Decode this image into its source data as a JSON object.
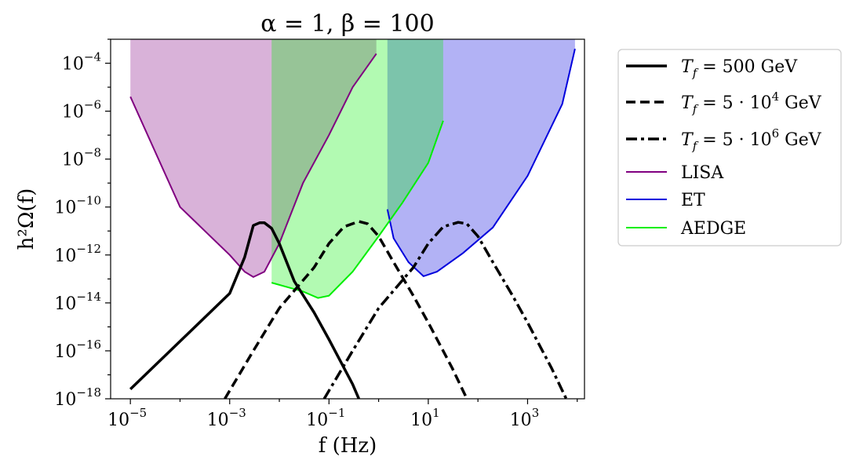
{
  "chart_data": {
    "type": "line",
    "title": "α = 1, β = 100",
    "xlabel": "f (Hz)",
    "ylabel": "h²Ω(f)",
    "xscale": "log",
    "yscale": "log",
    "xlim": [
      4e-06,
      14000.0
    ],
    "ylim": [
      1e-18,
      0.001
    ],
    "x_ticks": [
      {
        "value": 1e-05,
        "base": "10",
        "exp": "−5"
      },
      {
        "value": 0.001,
        "base": "10",
        "exp": "−3"
      },
      {
        "value": 0.1,
        "base": "10",
        "exp": "−1"
      },
      {
        "value": 10.0,
        "base": "10",
        "exp": "1"
      },
      {
        "value": 1000.0,
        "base": "10",
        "exp": "3"
      }
    ],
    "y_ticks": [
      {
        "value": 1e-18,
        "base": "10",
        "exp": "−18"
      },
      {
        "value": 1e-16,
        "base": "10",
        "exp": "−16"
      },
      {
        "value": 1e-14,
        "base": "10",
        "exp": "−14"
      },
      {
        "value": 1e-12,
        "base": "10",
        "exp": "−12"
      },
      {
        "value": 1e-10,
        "base": "10",
        "exp": "−10"
      },
      {
        "value": 1e-08,
        "base": "10",
        "exp": "−8"
      },
      {
        "value": 1e-06,
        "base": "10",
        "exp": "−6"
      },
      {
        "value": 0.0001,
        "base": "10",
        "exp": "−4"
      }
    ],
    "legend_position": "outside right",
    "series": [
      {
        "name": "T_f = 500 GeV",
        "color": "#000000",
        "dash": "solid",
        "points": [
          [
            1e-05,
            2.5e-18
          ],
          [
            0.0001,
            2.5e-16
          ],
          [
            0.001,
            2.5e-14
          ],
          [
            0.002,
            8e-13
          ],
          [
            0.003,
            1.7e-11
          ],
          [
            0.004,
            2.2e-11
          ],
          [
            0.005,
            2.2e-11
          ],
          [
            0.007,
            1.3e-11
          ],
          [
            0.01,
            3e-12
          ],
          [
            0.02,
            8e-14
          ],
          [
            0.05,
            4e-15
          ],
          [
            0.1,
            3e-16
          ],
          [
            0.3,
            4e-18
          ],
          [
            0.4,
            1e-18
          ]
        ]
      },
      {
        "name": "T_f = 5·10^4 GeV",
        "color": "#000000",
        "dash": "dashed",
        "points": [
          [
            0.0008,
            1e-18
          ],
          [
            0.003,
            1e-16
          ],
          [
            0.01,
            6e-15
          ],
          [
            0.05,
            3e-13
          ],
          [
            0.1,
            3e-12
          ],
          [
            0.2,
            1.5e-11
          ],
          [
            0.4,
            2.5e-11
          ],
          [
            0.6,
            2e-11
          ],
          [
            1,
            6e-12
          ],
          [
            2,
            5e-13
          ],
          [
            5,
            2e-14
          ],
          [
            10,
            1.5e-15
          ],
          [
            30,
            2e-17
          ],
          [
            60,
            1e-18
          ]
        ]
      },
      {
        "name": "T_f = 5·10^6 GeV",
        "color": "#000000",
        "dash": "dashdot",
        "points": [
          [
            0.08,
            1e-18
          ],
          [
            0.3,
            1e-16
          ],
          [
            1,
            6e-15
          ],
          [
            5,
            3e-13
          ],
          [
            10,
            3e-12
          ],
          [
            20,
            1.5e-11
          ],
          [
            40,
            2.3e-11
          ],
          [
            60,
            2e-11
          ],
          [
            100,
            6e-12
          ],
          [
            200,
            5e-13
          ],
          [
            500,
            2e-14
          ],
          [
            1000.0,
            1.5e-15
          ],
          [
            3000.0,
            2e-17
          ],
          [
            6000.0,
            1e-18
          ]
        ]
      }
    ],
    "sensitivity_curves": [
      {
        "name": "LISA",
        "color": "#800080",
        "fill": "#d8b2db",
        "points": [
          [
            1e-05,
            4e-06
          ],
          [
            0.0001,
            1e-10
          ],
          [
            0.001,
            1e-12
          ],
          [
            0.002,
            2e-13
          ],
          [
            0.003,
            1.2e-13
          ],
          [
            0.005,
            2e-13
          ],
          [
            0.01,
            3e-12
          ],
          [
            0.03,
            1e-09
          ],
          [
            0.1,
            1e-07
          ],
          [
            0.3,
            1e-05
          ],
          [
            0.9,
            0.00025
          ]
        ]
      },
      {
        "name": "ET",
        "color": "#0000dd",
        "fill": "#b1b1fd",
        "points": [
          [
            1.5,
            8e-11
          ],
          [
            2,
            5e-12
          ],
          [
            4,
            5e-13
          ],
          [
            8,
            1.3e-13
          ],
          [
            15,
            2e-13
          ],
          [
            50,
            1.2e-12
          ],
          [
            200,
            1.4e-11
          ],
          [
            1000.0,
            2e-09
          ],
          [
            5000.0,
            2e-06
          ],
          [
            9000.0,
            0.0004
          ]
        ]
      },
      {
        "name": "AEDGE",
        "color": "#00ee00",
        "fill": "#b0fcb0",
        "points": [
          [
            0.007,
            7e-14
          ],
          [
            0.03,
            3e-14
          ],
          [
            0.06,
            1.6e-14
          ],
          [
            0.1,
            2e-14
          ],
          [
            0.3,
            2e-13
          ],
          [
            1,
            6e-12
          ],
          [
            3,
            1.5e-10
          ],
          [
            10,
            7e-09
          ],
          [
            20,
            4e-07
          ]
        ]
      }
    ],
    "legend": [
      {
        "label": "T",
        "sub": "f",
        "text": " = 500 GeV",
        "style": "solid",
        "color": "#000000"
      },
      {
        "label": "T",
        "sub": "f",
        "text": " = 5 · 10",
        "sup": "4",
        "tail": " GeV",
        "style": "dashed",
        "color": "#000000"
      },
      {
        "label": "T",
        "sub": "f",
        "text": " = 5 · 10",
        "sup": "6",
        "tail": " GeV",
        "style": "dashdot",
        "color": "#000000"
      },
      {
        "label": "LISA",
        "style": "thin",
        "color": "#800080"
      },
      {
        "label": "ET",
        "style": "thin",
        "color": "#0000dd"
      },
      {
        "label": "AEDGE",
        "style": "thin",
        "color": "#00ee00"
      }
    ]
  }
}
